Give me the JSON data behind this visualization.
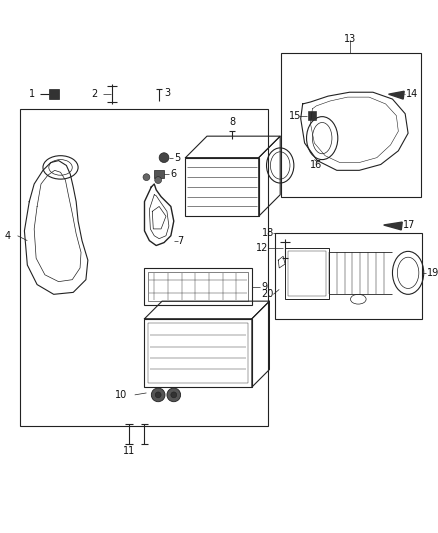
{
  "bg_color": "#ffffff",
  "line_color": "#222222",
  "fig_width": 4.38,
  "fig_height": 5.33,
  "dpi": 100
}
